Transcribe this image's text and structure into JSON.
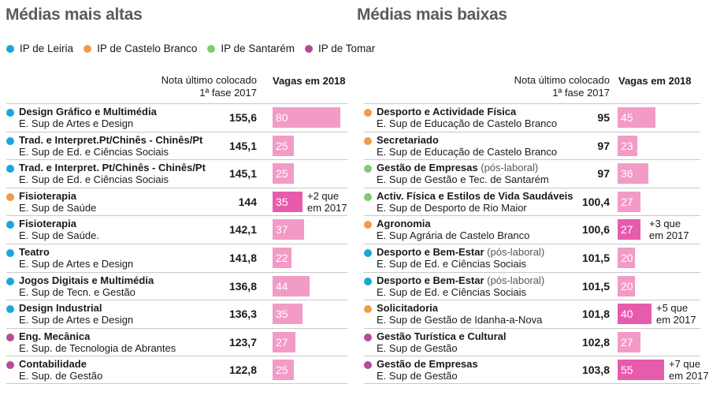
{
  "colors": {
    "IP de Leiria": "#1aa6dd",
    "IP de Castelo Branco": "#f39a49",
    "IP de Santarém": "#84c873",
    "IP de Tomar": "#b54c98",
    "bar": "#f29bc6",
    "bar_highlight": "#e75bac"
  },
  "legend": [
    "IP de Leiria",
    "IP de Castelo Branco",
    "IP de Santarém",
    "IP de Tomar"
  ],
  "chart_data": [
    {
      "type": "table",
      "title": "Médias mais altas",
      "col_nota": [
        "Nota último colocado",
        "1ª fase 2017"
      ],
      "col_vagas": "Vagas em 2018",
      "bar_max": 80,
      "rows": [
        {
          "course": "Design Gráfico e Multimédia",
          "sub": "",
          "school": "E. Sup de Artes e Design",
          "institute": "IP de Leiria",
          "nota": "155,6",
          "vagas": 80,
          "note": "",
          "highlight": false
        },
        {
          "course": "Trad. e Interpret.Pt/Chinês - Chinês/Pt",
          "sub": "",
          "school": "E. Sup de Ed. e Ciências Sociais",
          "institute": "IP de Leiria",
          "nota": "145,1",
          "vagas": 25,
          "note": "",
          "highlight": false
        },
        {
          "course": "Trad. e Interpret. Pt/Chinês - Chinês/Pt",
          "sub": "",
          "school": "E. Sup de Ed. e Ciências Sociais",
          "institute": "IP de Leiria",
          "nota": "145,1",
          "vagas": 25,
          "note": "",
          "highlight": false
        },
        {
          "course": "Fisioterapia",
          "sub": "",
          "school": "E. Sup de Saúde",
          "institute": "IP de Castelo Branco",
          "nota": "144",
          "vagas": 35,
          "note": [
            "+2 que",
            "em 2017"
          ],
          "highlight": true
        },
        {
          "course": "Fisioterapia",
          "sub": "",
          "school": "E. Sup de Saúde.",
          "institute": "IP de Leiria",
          "nota": "142,1",
          "vagas": 37,
          "note": "",
          "highlight": false
        },
        {
          "course": "Teatro",
          "sub": "",
          "school": "E. Sup de Artes e Design",
          "institute": "IP de Leiria",
          "nota": "141,8",
          "vagas": 22,
          "note": "",
          "highlight": false
        },
        {
          "course": "Jogos Digitais e Multimédia",
          "sub": "",
          "school": "E. Sup de Tecn. e Gestão",
          "institute": "IP de Leiria",
          "nota": "136,8",
          "vagas": 44,
          "note": "",
          "highlight": false
        },
        {
          "course": "Design Industrial",
          "sub": "",
          "school": "E. Sup de Artes e Design",
          "institute": "IP de Leiria",
          "nota": "136,3",
          "vagas": 35,
          "note": "",
          "highlight": false
        },
        {
          "course": "Eng. Mecânica",
          "sub": "",
          "school": "E. Sup. de Tecnologia de Abrantes",
          "institute": "IP de Tomar",
          "nota": "123,7",
          "vagas": 27,
          "note": "",
          "highlight": false
        },
        {
          "course": "Contabilidade",
          "sub": "",
          "school": "E. Sup. de Gestão",
          "institute": "IP de Tomar",
          "nota": "122,8",
          "vagas": 25,
          "note": "",
          "highlight": false
        }
      ]
    },
    {
      "type": "table",
      "title": "Médias mais baixas",
      "col_nota": [
        "Nota último colocado",
        "1ª fase 2017"
      ],
      "col_vagas": "Vagas em 2018",
      "bar_max": 80,
      "rows": [
        {
          "course": "Desporto e Actividade Física",
          "sub": "",
          "school": "E. Sup de Educação de Castelo Branco",
          "institute": "IP de Castelo Branco",
          "nota": "95",
          "vagas": 45,
          "note": "",
          "highlight": false
        },
        {
          "course": "Secretariado",
          "sub": "",
          "school": "E. Sup de Educação de Castelo Branco",
          "institute": "IP de Castelo Branco",
          "nota": "97",
          "vagas": 23,
          "note": "",
          "highlight": false
        },
        {
          "course": "Gestão de Empresas",
          "sub": "(pós-laboral)",
          "school": "E. Sup de Gestão e Tec. de Santarém",
          "institute": "IP de Santarém",
          "nota": "97",
          "vagas": 36,
          "note": "",
          "highlight": false
        },
        {
          "course": "Activ. Física e Estilos de Vida Saudáveis",
          "sub": "",
          "school": "E. Sup de Desporto de Rio Maior",
          "institute": "IP de Santarém",
          "nota": "100,4",
          "vagas": 27,
          "note": "",
          "highlight": false
        },
        {
          "course": "Agronomia",
          "sub": "",
          "school": "E. Sup Agrária de Castelo Branco",
          "institute": "IP de Castelo Branco",
          "nota": "100,6",
          "vagas": 27,
          "note": [
            "+3 que",
            "em 2017"
          ],
          "highlight": true
        },
        {
          "course": "Desporto e Bem-Estar",
          "sub": "(pós-laboral)",
          "school": "E. Sup de Ed. e Ciências Sociais",
          "institute": "IP de Leiria",
          "nota": "101,5",
          "vagas": 20,
          "note": "",
          "highlight": false
        },
        {
          "course": "Desporto e Bem-Estar",
          "sub": "(pós-laboral)",
          "school": "E. Sup de Ed. e Ciências Sociais",
          "institute": "IP de Leiria",
          "nota": "101,5",
          "vagas": 20,
          "note": "",
          "highlight": false
        },
        {
          "course": "Solicitadoria",
          "sub": "",
          "school": "E. Sup de Gestão de Idanha-a-Nova",
          "institute": "IP de Castelo Branco",
          "nota": "101,8",
          "vagas": 40,
          "note": [
            "+5 que",
            "em 2017"
          ],
          "highlight": true
        },
        {
          "course": "Gestão Turística e Cultural",
          "sub": "",
          "school": "E. Sup de Gestão",
          "institute": "IP de Tomar",
          "nota": "102,8",
          "vagas": 27,
          "note": "",
          "highlight": false
        },
        {
          "course": "Gestão de Empresas",
          "sub": "",
          "school": "E. Sup de Gestão",
          "institute": "IP de Tomar",
          "nota": "103,8",
          "vagas": 55,
          "note": [
            "+7 que",
            "em 2017"
          ],
          "highlight": true
        }
      ]
    }
  ]
}
